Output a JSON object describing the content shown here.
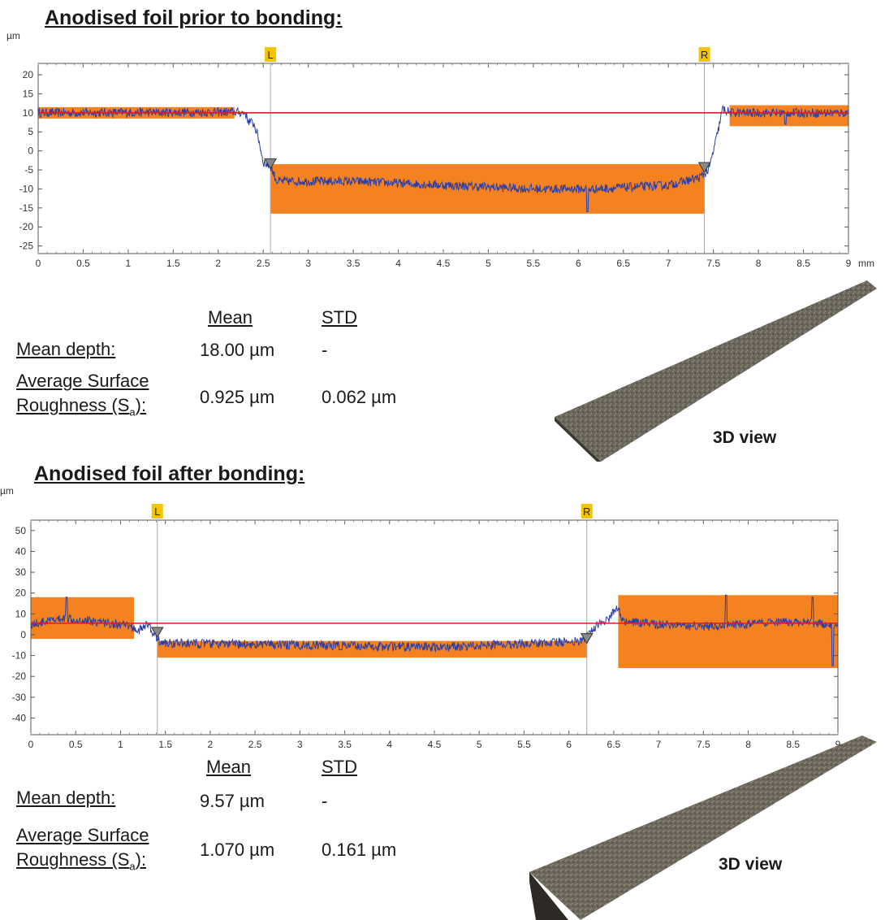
{
  "colors": {
    "profile": "#2b3fa8",
    "region": "#f58220",
    "reference": "#d81e2a",
    "marker": "#f5c400",
    "axis": "#555555",
    "grid": "#cccccc"
  },
  "panels": [
    {
      "title": "Anodised foil prior to bonding:",
      "chart_data": {
        "type": "line",
        "unit_y": "µm",
        "unit_x": "mm",
        "xlim": [
          0,
          9
        ],
        "ylim": [
          -27,
          23
        ],
        "x_ticks": [
          "0",
          "0.5",
          "1",
          "1.5",
          "2",
          "2.5",
          "3",
          "3.5",
          "4",
          "4.5",
          "5",
          "5.5",
          "6",
          "6.5",
          "7",
          "7.5",
          "8",
          "8.5",
          "9"
        ],
        "y_ticks": [
          "20",
          "15",
          "10",
          "5",
          "0",
          "-5",
          "-10",
          "-15",
          "-20",
          "-25"
        ],
        "y_tick_values": [
          20,
          15,
          10,
          5,
          0,
          -5,
          -10,
          -15,
          -20,
          -25
        ],
        "markers": [
          {
            "label": "L",
            "x": 2.58
          },
          {
            "label": "R",
            "x": 7.4
          }
        ],
        "reference_line_y": 10,
        "regions": [
          {
            "x0": 0.0,
            "x1": 2.18,
            "y0": 8.5,
            "y1": 11.5
          },
          {
            "x0": 2.58,
            "x1": 7.4,
            "y0": -16.5,
            "y1": -3.5
          },
          {
            "x0": 7.68,
            "x1": 9.0,
            "y0": 6.5,
            "y1": 12.0
          }
        ],
        "profile_anchors": [
          [
            0,
            10
          ],
          [
            2.2,
            10.2
          ],
          [
            2.3,
            10
          ],
          [
            2.33,
            8
          ],
          [
            2.4,
            7
          ],
          [
            2.45,
            3
          ],
          [
            2.5,
            -3
          ],
          [
            2.58,
            -4
          ],
          [
            2.65,
            -8
          ],
          [
            3.5,
            -8
          ],
          [
            4.5,
            -9
          ],
          [
            5.5,
            -10
          ],
          [
            6.2,
            -10
          ],
          [
            7.0,
            -9
          ],
          [
            7.35,
            -7
          ],
          [
            7.45,
            -5
          ],
          [
            7.55,
            5
          ],
          [
            7.6,
            11
          ],
          [
            7.7,
            10
          ],
          [
            9.0,
            10
          ]
        ],
        "profile_noise": 1.2,
        "spikes": [
          {
            "x": 6.1,
            "y": -16
          },
          {
            "x": 8.3,
            "y": 7
          }
        ]
      },
      "stats": {
        "mean_header": "Mean",
        "std_header": "STD",
        "depth_label": "Mean depth:",
        "depth_mean": "18.00 µm",
        "depth_std": "-",
        "rough_label_line1": "Average Surface",
        "rough_label_line2": "Roughness (S",
        "rough_label_sub": "a",
        "rough_label_end": "):",
        "rough_mean": "0.925 µm",
        "rough_std": "0.062 µm"
      },
      "view_label": "3D view"
    },
    {
      "title": "Anodised foil after bonding:",
      "chart_data": {
        "type": "line",
        "unit_y": "µm",
        "unit_x": "mm",
        "xlim": [
          0,
          9
        ],
        "ylim": [
          -48,
          55
        ],
        "x_ticks": [
          "0",
          "0.5",
          "1",
          "1.5",
          "2",
          "2.5",
          "3",
          "3.5",
          "4",
          "4.5",
          "5",
          "5.5",
          "6",
          "6.5",
          "7",
          "7.5",
          "8",
          "8.5",
          "9"
        ],
        "y_ticks": [
          "50",
          "40",
          "30",
          "20",
          "10",
          "0",
          "-10",
          "-20",
          "-30",
          "-40"
        ],
        "y_tick_values": [
          50,
          40,
          30,
          20,
          10,
          0,
          -10,
          -20,
          -30,
          -40
        ],
        "markers": [
          {
            "label": "L",
            "x": 1.41
          },
          {
            "label": "R",
            "x": 6.2
          }
        ],
        "reference_line_y": 5.5,
        "regions": [
          {
            "x0": 0.0,
            "x1": 1.15,
            "y0": -2,
            "y1": 18
          },
          {
            "x0": 1.41,
            "x1": 6.2,
            "y0": -11,
            "y1": -3
          },
          {
            "x0": 6.55,
            "x1": 9.0,
            "y0": -16,
            "y1": 19
          }
        ],
        "profile_anchors": [
          [
            0,
            5
          ],
          [
            0.4,
            8
          ],
          [
            0.8,
            6
          ],
          [
            1.1,
            4
          ],
          [
            1.2,
            2
          ],
          [
            1.3,
            5
          ],
          [
            1.38,
            0
          ],
          [
            1.45,
            -4
          ],
          [
            3.0,
            -5
          ],
          [
            4.5,
            -6
          ],
          [
            6.15,
            -3
          ],
          [
            6.3,
            4
          ],
          [
            6.45,
            8
          ],
          [
            6.55,
            14
          ],
          [
            6.6,
            6
          ],
          [
            7.5,
            4
          ],
          [
            8.5,
            6
          ],
          [
            9.0,
            5
          ]
        ],
        "profile_noise": 2.2,
        "spikes": [
          {
            "x": 0.4,
            "y": 18
          },
          {
            "x": 7.75,
            "y": 19
          },
          {
            "x": 8.94,
            "y": -15
          },
          {
            "x": 8.72,
            "y": 18
          }
        ]
      },
      "stats": {
        "mean_header": "Mean",
        "std_header": "STD",
        "depth_label": "Mean depth:",
        "depth_mean": "9.57 µm",
        "depth_std": "-",
        "rough_label_line1": "Average Surface",
        "rough_label_line2": "Roughness (S",
        "rough_label_sub": "a",
        "rough_label_end": "):",
        "rough_mean": "1.070 µm",
        "rough_std": "0.161 µm"
      },
      "view_label": "3D view"
    }
  ]
}
